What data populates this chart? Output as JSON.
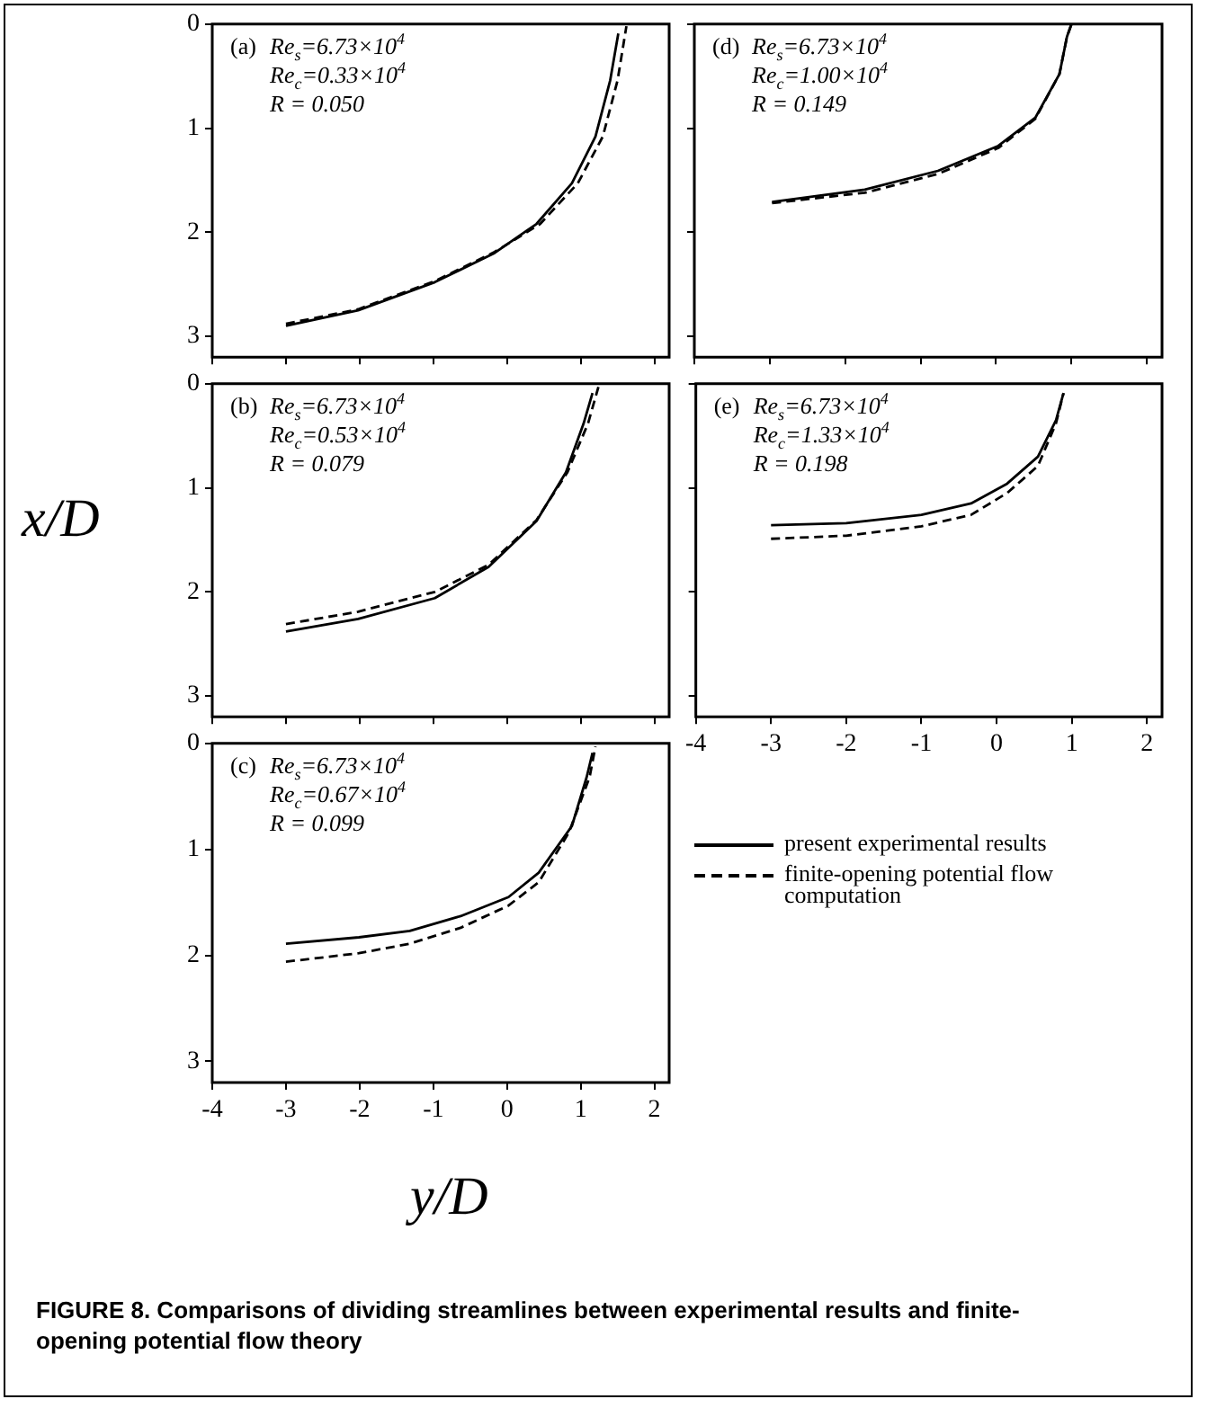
{
  "chart_data": [
    {
      "type": "line",
      "annotations": [
        "(a)",
        "Re$_{s}$=6.73×10$^{4}$",
        "Re$_{c}$=0.33×10$^{4}$",
        "R = 0.050"
      ],
      "xlim": [
        -4,
        2.2
      ],
      "xticks": [
        -4,
        -3,
        -2,
        -1,
        0,
        1,
        2
      ],
      "ylim": [
        3.2,
        0
      ],
      "yticks": [
        0,
        1,
        2,
        3
      ],
      "tick_labels": "y",
      "series": [
        {
          "color": "#000000",
          "line_style": "solid",
          "x": [
            -3,
            -2.02,
            -0.98,
            -0.17,
            0.4,
            0.88,
            1.2,
            1.4,
            1.51
          ],
          "values": [
            2.9,
            2.75,
            2.48,
            2.2,
            1.92,
            1.53,
            1.08,
            0.54,
            0.09
          ]
        },
        {
          "color": "#000000",
          "line_style": "dashed",
          "x": [
            -3,
            -2.02,
            -0.98,
            -0.17,
            0.45,
            0.96,
            1.3,
            1.5,
            1.62
          ],
          "values": [
            2.88,
            2.74,
            2.47,
            2.19,
            1.92,
            1.53,
            1.08,
            0.54,
            0.02
          ]
        }
      ]
    },
    {
      "type": "line",
      "annotations": [
        "(d)",
        "Re$_{s}$=6.73×10$^{4}$",
        "Re$_{c}$=1.00×10$^{4}$",
        "R = 0.149"
      ],
      "xlim": [
        -4,
        2.2
      ],
      "xticks": [
        -4,
        -3,
        -2,
        -1,
        0,
        1,
        2
      ],
      "ylim": [
        3.2,
        0
      ],
      "yticks": [
        0,
        1,
        2,
        3
      ],
      "tick_labels": false,
      "series": [
        {
          "color": "#000000",
          "line_style": "solid",
          "x": [
            -2.97,
            -1.74,
            -0.77,
            0.03,
            0.52,
            0.84,
            0.94,
            1.0
          ],
          "values": [
            1.71,
            1.59,
            1.41,
            1.17,
            0.9,
            0.48,
            0.12,
            0
          ]
        },
        {
          "color": "#000000",
          "line_style": "dashed",
          "x": [
            -2.97,
            -1.74,
            -0.77,
            0.03,
            0.52,
            0.84,
            0.94,
            1.0
          ],
          "values": [
            1.72,
            1.62,
            1.44,
            1.19,
            0.91,
            0.48,
            0.12,
            0
          ]
        }
      ]
    },
    {
      "type": "line",
      "ylabel": "x/D",
      "annotations": [
        "(b)",
        "Re$_{s}$=6.73×10$^{4}$",
        "Re$_{c}$=0.53×10$^{4}$",
        "R = 0.079"
      ],
      "xlim": [
        -4,
        2.2
      ],
      "xticks": [
        -4,
        -3,
        -2,
        -1,
        0,
        1,
        2
      ],
      "ylim": [
        3.2,
        0
      ],
      "yticks": [
        0,
        1,
        2,
        3
      ],
      "tick_labels": "y",
      "series": [
        {
          "color": "#000000",
          "line_style": "solid",
          "x": [
            -3,
            -2.02,
            -0.98,
            -0.25,
            0.4,
            0.8,
            1.04,
            1.16
          ],
          "values": [
            2.38,
            2.26,
            2.06,
            1.76,
            1.32,
            0.85,
            0.38,
            0.09
          ]
        },
        {
          "color": "#000000",
          "line_style": "dashed",
          "x": [
            -3,
            -2.02,
            -0.98,
            -0.25,
            0.4,
            0.82,
            1.1,
            1.24
          ],
          "values": [
            2.31,
            2.19,
            2.0,
            1.74,
            1.31,
            0.85,
            0.38,
            0.03
          ]
        }
      ]
    },
    {
      "type": "line",
      "annotations": [
        "(e)",
        "Re$_{s}$=6.73×10$^{4}$",
        "Re$_{c}$=1.33×10$^{4}$",
        "R = 0.198"
      ],
      "xlim": [
        -4,
        2.2
      ],
      "xticks": [
        -4,
        -3,
        -2,
        -1,
        0,
        1,
        2
      ],
      "ylim": [
        3.2,
        0
      ],
      "yticks": [
        0,
        1,
        2,
        3
      ],
      "tick_labels": "x",
      "series": [
        {
          "color": "#000000",
          "line_style": "solid",
          "x": [
            -3,
            -2,
            -1,
            -0.34,
            0.14,
            0.55,
            0.79,
            0.89
          ],
          "values": [
            1.36,
            1.34,
            1.26,
            1.15,
            0.96,
            0.7,
            0.35,
            0.09
          ]
        },
        {
          "color": "#000000",
          "line_style": "dashed",
          "x": [
            -3,
            -2,
            -1,
            -0.34,
            0.14,
            0.55,
            0.79,
            0.89
          ],
          "values": [
            1.49,
            1.46,
            1.37,
            1.26,
            1.05,
            0.79,
            0.38,
            0.09
          ]
        }
      ]
    },
    {
      "type": "line",
      "title": "FIGURE 8.  Comparisons of dividing streamlines between experimental results and finite-opening potential flow theory",
      "xlabel": "y/D",
      "legend": "right",
      "annotations": [
        "(c)",
        "Re$_{s}$=6.73×10$^{4}$",
        "Re$_{c}$=0.67×10$^{4}$",
        "R = 0.099"
      ],
      "xlim": [
        -4,
        2.2
      ],
      "xticks": [
        -4,
        -3,
        -2,
        -1,
        0,
        1,
        2
      ],
      "ylim": [
        3.2,
        0
      ],
      "yticks": [
        0,
        1,
        2,
        3
      ],
      "series": [
        {
          "name": "present experimental results",
          "color": "#000000",
          "line_style": "solid",
          "x": [
            -3,
            -2.01,
            -1.32,
            -0.63,
            0.02,
            0.43,
            0.88,
            1.08,
            1.16
          ],
          "values": [
            1.89,
            1.83,
            1.77,
            1.63,
            1.45,
            1.22,
            0.78,
            0.32,
            0.09
          ]
        },
        {
          "name": "finite-opening potential flow computation",
          "color": "#000000",
          "line_style": "dashed",
          "x": [
            -3,
            -2.01,
            -1.32,
            -0.63,
            0.02,
            0.43,
            0.84,
            1.12,
            1.2
          ],
          "values": [
            2.06,
            1.98,
            1.89,
            1.74,
            1.53,
            1.31,
            0.84,
            0.32,
            0.03
          ]
        }
      ]
    }
  ]
}
